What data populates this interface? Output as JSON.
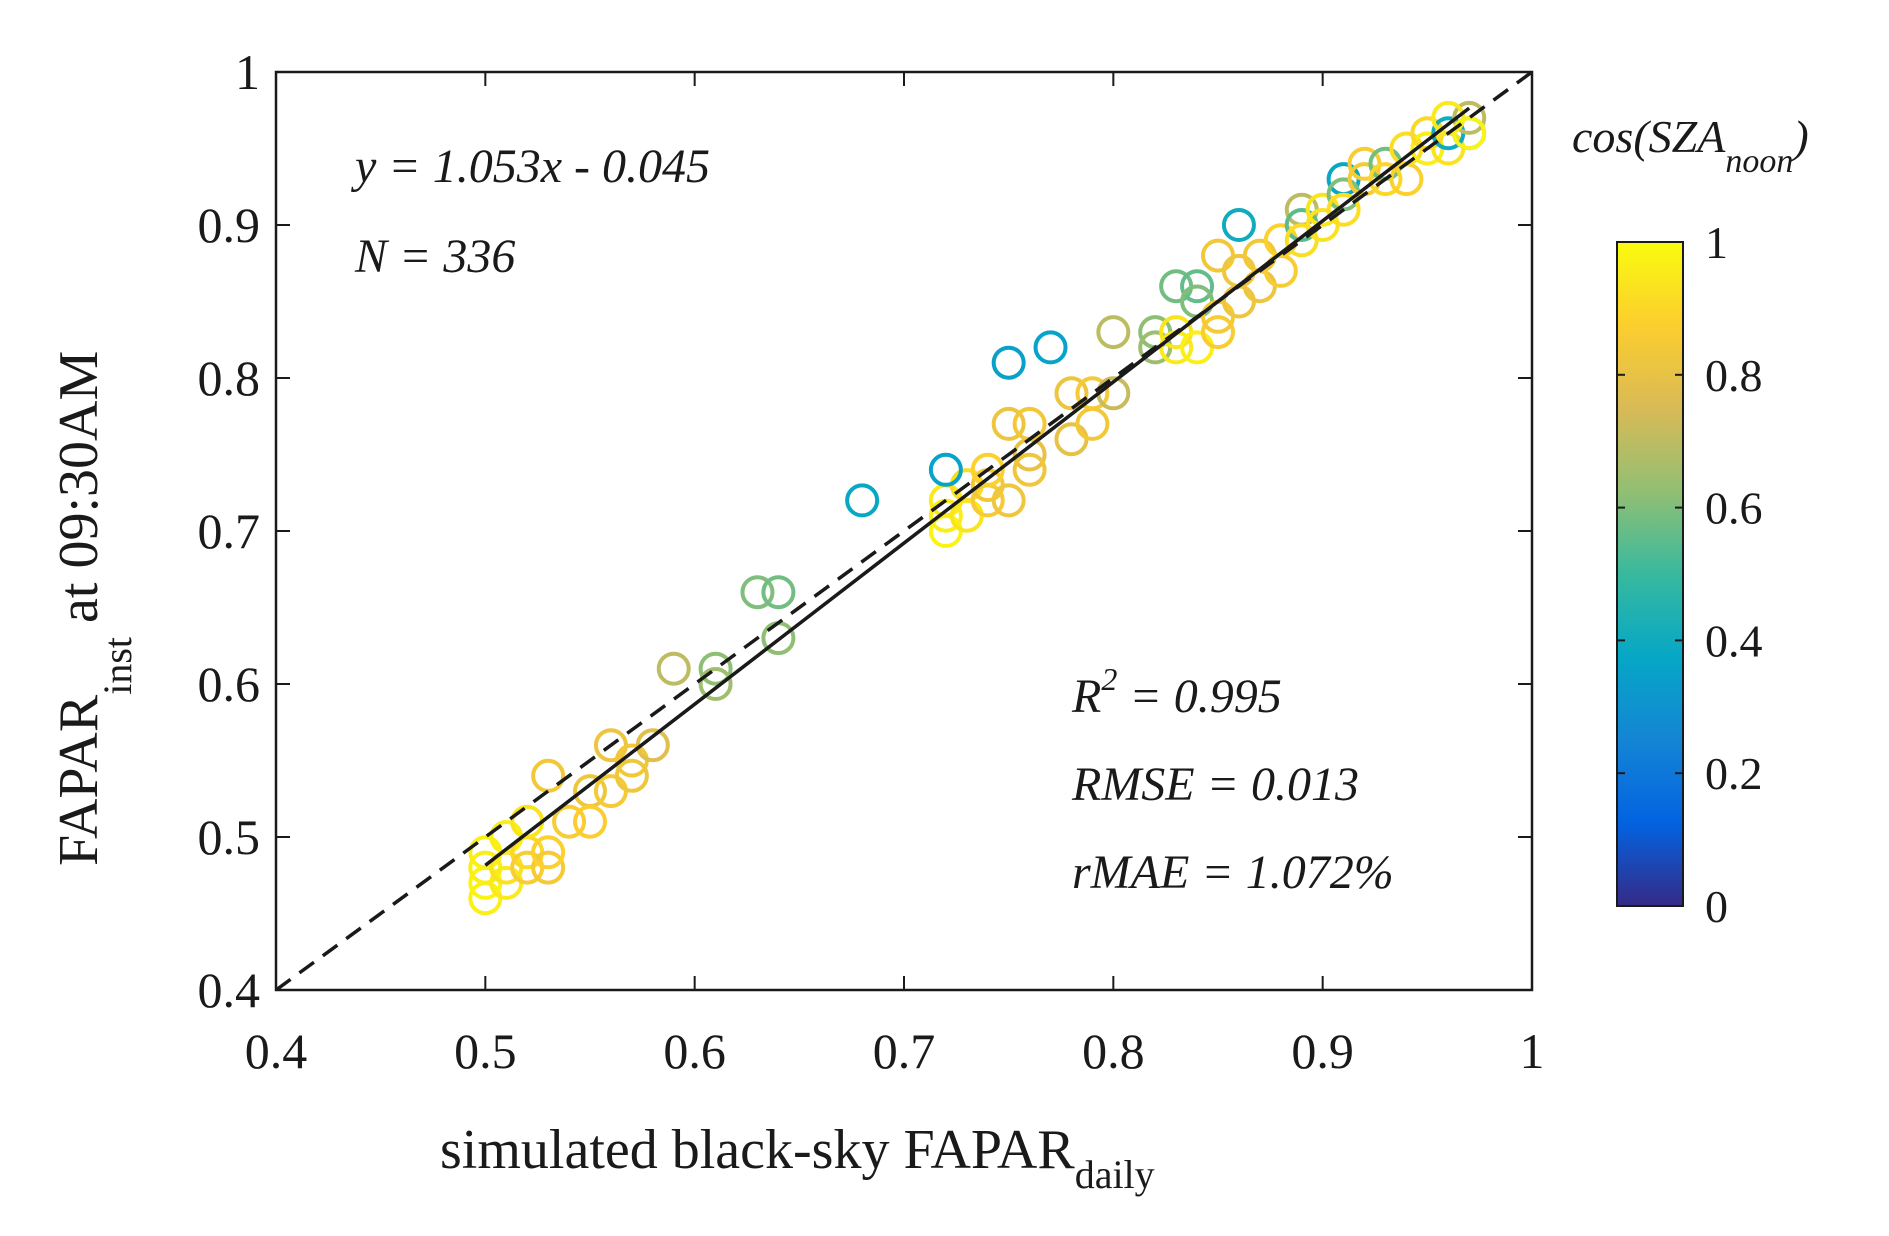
{
  "chart_data": {
    "type": "scatter",
    "xlabel": "simulated black-sky FAPAR",
    "xlabel_sub": "daily",
    "ylabel_main": "FAPAR",
    "ylabel_sub": "inst",
    "ylabel_suffix": " at 09:30AM",
    "xlim": [
      0.4,
      1
    ],
    "ylim": [
      0.4,
      1
    ],
    "xticks": [
      0.4,
      0.5,
      0.6,
      0.7,
      0.8,
      0.9,
      1
    ],
    "yticks": [
      0.4,
      0.5,
      0.6,
      0.7,
      0.8,
      0.9,
      1
    ],
    "xtick_labels": [
      "0.4",
      "0.5",
      "0.6",
      "0.7",
      "0.8",
      "0.9",
      "1"
    ],
    "ytick_labels": [
      "0.4",
      "0.5",
      "0.6",
      "0.7",
      "0.8",
      "0.9",
      "1"
    ],
    "annotations": {
      "equation": "y = 1.053x - 0.045",
      "n": "N = 336",
      "r2_prefix": "R",
      "r2_sup": "2",
      "r2_value": " = 0.995",
      "rmse": "RMSE = 0.013",
      "rmae": "rMAE = 1.072%"
    },
    "fit_line": {
      "slope": 1.053,
      "intercept": -0.045,
      "x_range": [
        0.5,
        0.97
      ]
    },
    "reference_line": {
      "type": "1:1",
      "style": "dashed"
    },
    "colorbar": {
      "title_main": "cos(SZA",
      "title_sub": "noon",
      "title_close": ")",
      "range": [
        0,
        1
      ],
      "ticks": [
        0,
        0.2,
        0.4,
        0.6,
        0.8,
        1
      ],
      "tick_labels": [
        "0",
        "0.2",
        "0.4",
        "0.6",
        "0.8",
        "1"
      ]
    },
    "points": [
      [
        0.5,
        0.46,
        0.97
      ],
      [
        0.5,
        0.47,
        0.98
      ],
      [
        0.5,
        0.48,
        0.96
      ],
      [
        0.5,
        0.49,
        0.97
      ],
      [
        0.51,
        0.47,
        0.95
      ],
      [
        0.51,
        0.48,
        0.93
      ],
      [
        0.51,
        0.5,
        0.96
      ],
      [
        0.52,
        0.49,
        0.9
      ],
      [
        0.52,
        0.51,
        0.94
      ],
      [
        0.52,
        0.48,
        0.86
      ],
      [
        0.53,
        0.48,
        0.85
      ],
      [
        0.53,
        0.49,
        0.88
      ],
      [
        0.53,
        0.54,
        0.84
      ],
      [
        0.54,
        0.51,
        0.86
      ],
      [
        0.55,
        0.53,
        0.83
      ],
      [
        0.55,
        0.51,
        0.87
      ],
      [
        0.56,
        0.53,
        0.85
      ],
      [
        0.56,
        0.56,
        0.82
      ],
      [
        0.57,
        0.55,
        0.84
      ],
      [
        0.57,
        0.54,
        0.83
      ],
      [
        0.58,
        0.56,
        0.78
      ],
      [
        0.59,
        0.61,
        0.7
      ],
      [
        0.61,
        0.61,
        0.62
      ],
      [
        0.61,
        0.6,
        0.65
      ],
      [
        0.63,
        0.66,
        0.6
      ],
      [
        0.64,
        0.66,
        0.58
      ],
      [
        0.64,
        0.63,
        0.62
      ],
      [
        0.68,
        0.72,
        0.38
      ],
      [
        0.72,
        0.7,
        0.98
      ],
      [
        0.72,
        0.71,
        0.96
      ],
      [
        0.72,
        0.72,
        0.95
      ],
      [
        0.73,
        0.73,
        0.92
      ],
      [
        0.73,
        0.71,
        0.94
      ],
      [
        0.72,
        0.74,
        0.36
      ],
      [
        0.74,
        0.72,
        0.85
      ],
      [
        0.74,
        0.73,
        0.84
      ],
      [
        0.74,
        0.74,
        0.88
      ],
      [
        0.75,
        0.72,
        0.83
      ],
      [
        0.75,
        0.77,
        0.82
      ],
      [
        0.75,
        0.81,
        0.35
      ],
      [
        0.76,
        0.75,
        0.8
      ],
      [
        0.76,
        0.74,
        0.83
      ],
      [
        0.76,
        0.77,
        0.84
      ],
      [
        0.77,
        0.82,
        0.36
      ],
      [
        0.78,
        0.79,
        0.82
      ],
      [
        0.78,
        0.76,
        0.8
      ],
      [
        0.79,
        0.77,
        0.84
      ],
      [
        0.79,
        0.79,
        0.85
      ],
      [
        0.8,
        0.79,
        0.72
      ],
      [
        0.8,
        0.83,
        0.7
      ],
      [
        0.82,
        0.83,
        0.62
      ],
      [
        0.82,
        0.82,
        0.64
      ],
      [
        0.83,
        0.82,
        0.95
      ],
      [
        0.83,
        0.83,
        0.94
      ],
      [
        0.84,
        0.82,
        0.97
      ],
      [
        0.83,
        0.86,
        0.58
      ],
      [
        0.84,
        0.86,
        0.56
      ],
      [
        0.84,
        0.85,
        0.6
      ],
      [
        0.85,
        0.83,
        0.86
      ],
      [
        0.85,
        0.84,
        0.85
      ],
      [
        0.85,
        0.88,
        0.84
      ],
      [
        0.86,
        0.85,
        0.82
      ],
      [
        0.86,
        0.87,
        0.83
      ],
      [
        0.86,
        0.9,
        0.4
      ],
      [
        0.87,
        0.86,
        0.82
      ],
      [
        0.87,
        0.88,
        0.84
      ],
      [
        0.88,
        0.87,
        0.86
      ],
      [
        0.88,
        0.89,
        0.88
      ],
      [
        0.89,
        0.91,
        0.7
      ],
      [
        0.89,
        0.9,
        0.55
      ],
      [
        0.89,
        0.89,
        0.92
      ],
      [
        0.9,
        0.9,
        0.93
      ],
      [
        0.9,
        0.91,
        0.94
      ],
      [
        0.91,
        0.93,
        0.38
      ],
      [
        0.91,
        0.92,
        0.6
      ],
      [
        0.91,
        0.91,
        0.92
      ],
      [
        0.92,
        0.93,
        0.85
      ],
      [
        0.92,
        0.94,
        0.86
      ],
      [
        0.93,
        0.94,
        0.58
      ],
      [
        0.93,
        0.93,
        0.9
      ],
      [
        0.94,
        0.93,
        0.88
      ],
      [
        0.94,
        0.95,
        0.92
      ],
      [
        0.95,
        0.95,
        0.96
      ],
      [
        0.95,
        0.96,
        0.9
      ],
      [
        0.96,
        0.95,
        0.93
      ],
      [
        0.96,
        0.96,
        0.4
      ],
      [
        0.97,
        0.96,
        0.55
      ],
      [
        0.97,
        0.97,
        0.7
      ],
      [
        0.96,
        0.97,
        0.95
      ],
      [
        0.97,
        0.96,
        0.98
      ]
    ]
  }
}
